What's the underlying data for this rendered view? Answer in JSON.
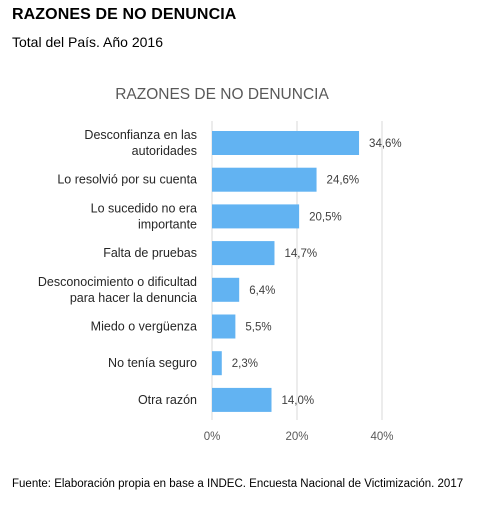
{
  "header": {
    "title": "RAZONES DE NO DENUNCIA",
    "subtitle": "Total del País. Año 2016"
  },
  "footer": {
    "source": "Fuente: Elaboración propia en base a INDEC. Encuesta Nacional de Victimización. 2017"
  },
  "chart_data": {
    "type": "bar",
    "orientation": "horizontal",
    "title": "RAZONES DE NO DENUNCIA",
    "categories": [
      [
        "Desconfianza en las",
        "autoridades"
      ],
      [
        "Lo resolvió por su cuenta"
      ],
      [
        "Lo sucedido no era",
        "importante"
      ],
      [
        "Falta de pruebas"
      ],
      [
        "Desconocimiento o dificultad",
        "para hacer la denuncia"
      ],
      [
        "Miedo o vergüenza"
      ],
      [
        "No tenía seguro"
      ],
      [
        "Otra razón"
      ]
    ],
    "values": [
      34.6,
      24.6,
      20.5,
      14.7,
      6.4,
      5.5,
      2.3,
      14.0
    ],
    "value_labels": [
      "34,6%",
      "24,6%",
      "20,5%",
      "14,7%",
      "6,4%",
      "5,5%",
      "2,3%",
      "14,0%"
    ],
    "xlim": [
      0,
      40
    ],
    "xticks": [
      0,
      20,
      40
    ],
    "xtick_labels": [
      "0%",
      "20%",
      "40%"
    ],
    "grid": true,
    "bar_color": "#62b3f2",
    "legend": false
  }
}
